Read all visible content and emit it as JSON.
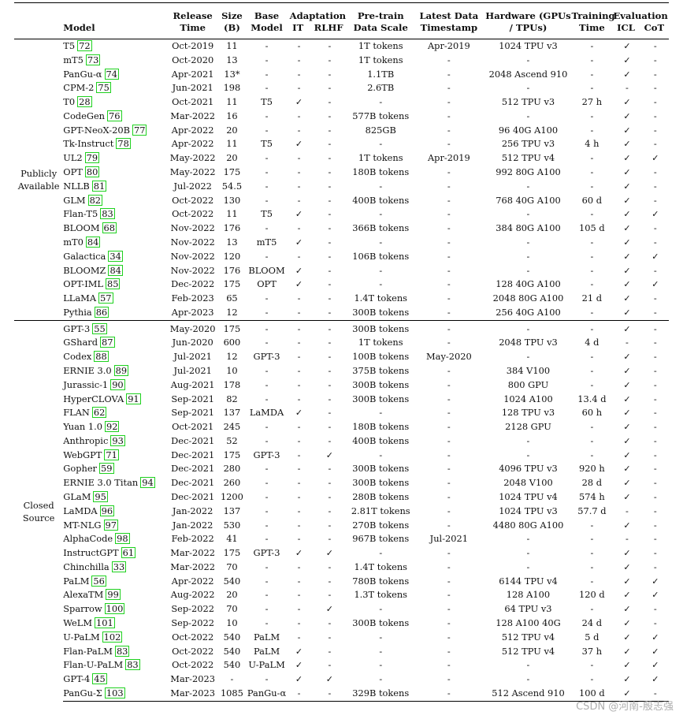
{
  "header": {
    "model": "Model",
    "release": "Release Time",
    "size": "Size (B)",
    "base": "Base Model",
    "adaptation": "Adaptation",
    "it": "IT",
    "rlhf": "RLHF",
    "pretrain": "Pre-train Data Scale",
    "latest": "Latest Data Timestamp",
    "hardware": "Hardware (GPUs / TPUs)",
    "training": "Training Time",
    "evaluation": "Evaluation",
    "icl": "ICL",
    "cot": "CoT"
  },
  "groups": {
    "public": "Publicly Available",
    "closed": "Closed Source"
  },
  "public_rows": [
    [
      "T5",
      "72",
      "Oct-2019",
      "11",
      "-",
      "-",
      "-",
      "1T tokens",
      "Apr-2019",
      "1024 TPU v3",
      "-",
      "✓",
      "-"
    ],
    [
      "mT5",
      "73",
      "Oct-2020",
      "13",
      "-",
      "-",
      "-",
      "1T tokens",
      "-",
      "-",
      "-",
      "✓",
      "-"
    ],
    [
      "PanGu-α",
      "74",
      "Apr-2021",
      "13*",
      "-",
      "-",
      "-",
      "1.1TB",
      "-",
      "2048 Ascend 910",
      "-",
      "✓",
      "-"
    ],
    [
      "CPM-2",
      "75",
      "Jun-2021",
      "198",
      "-",
      "-",
      "-",
      "2.6TB",
      "-",
      "-",
      "-",
      "-",
      "-"
    ],
    [
      "T0",
      "28",
      "Oct-2021",
      "11",
      "T5",
      "✓",
      "-",
      "-",
      "-",
      "512 TPU v3",
      "27 h",
      "✓",
      "-"
    ],
    [
      "CodeGen",
      "76",
      "Mar-2022",
      "16",
      "-",
      "-",
      "-",
      "577B tokens",
      "-",
      "-",
      "-",
      "✓",
      "-"
    ],
    [
      "GPT-NeoX-20B",
      "77",
      "Apr-2022",
      "20",
      "-",
      "-",
      "-",
      "825GB",
      "-",
      "96 40G A100",
      "-",
      "✓",
      "-"
    ],
    [
      "Tk-Instruct",
      "78",
      "Apr-2022",
      "11",
      "T5",
      "✓",
      "-",
      "-",
      "-",
      "256 TPU v3",
      "4 h",
      "✓",
      "-"
    ],
    [
      "UL2",
      "79",
      "May-2022",
      "20",
      "-",
      "-",
      "-",
      "1T tokens",
      "Apr-2019",
      "512 TPU v4",
      "-",
      "✓",
      "✓"
    ],
    [
      "OPT",
      "80",
      "May-2022",
      "175",
      "-",
      "-",
      "-",
      "180B tokens",
      "-",
      "992 80G A100",
      "-",
      "✓",
      "-"
    ],
    [
      "NLLB",
      "81",
      "Jul-2022",
      "54.5",
      "-",
      "-",
      "-",
      "-",
      "-",
      "-",
      "-",
      "✓",
      "-"
    ],
    [
      "GLM",
      "82",
      "Oct-2022",
      "130",
      "-",
      "-",
      "-",
      "400B tokens",
      "-",
      "768 40G A100",
      "60 d",
      "✓",
      "-"
    ],
    [
      "Flan-T5",
      "83",
      "Oct-2022",
      "11",
      "T5",
      "✓",
      "-",
      "-",
      "-",
      "-",
      "-",
      "✓",
      "✓"
    ],
    [
      "BLOOM",
      "68",
      "Nov-2022",
      "176",
      "-",
      "-",
      "-",
      "366B tokens",
      "-",
      "384 80G A100",
      "105 d",
      "✓",
      "-"
    ],
    [
      "mT0",
      "84",
      "Nov-2022",
      "13",
      "mT5",
      "✓",
      "-",
      "-",
      "-",
      "-",
      "-",
      "✓",
      "-"
    ],
    [
      "Galactica",
      "34",
      "Nov-2022",
      "120",
      "-",
      "-",
      "-",
      "106B tokens",
      "-",
      "-",
      "-",
      "✓",
      "✓"
    ],
    [
      "BLOOMZ",
      "84",
      "Nov-2022",
      "176",
      "BLOOM",
      "✓",
      "-",
      "-",
      "-",
      "-",
      "-",
      "✓",
      "-"
    ],
    [
      "OPT-IML",
      "85",
      "Dec-2022",
      "175",
      "OPT",
      "✓",
      "-",
      "-",
      "-",
      "128 40G A100",
      "-",
      "✓",
      "✓"
    ],
    [
      "LLaMA",
      "57",
      "Feb-2023",
      "65",
      "-",
      "-",
      "-",
      "1.4T tokens",
      "-",
      "2048 80G A100",
      "21 d",
      "✓",
      "-"
    ],
    [
      "Pythia",
      "86",
      "Apr-2023",
      "12",
      "-",
      "-",
      "-",
      "300B tokens",
      "-",
      "256 40G A100",
      "-",
      "✓",
      "-"
    ]
  ],
  "closed_rows": [
    [
      "GPT-3",
      "55",
      "May-2020",
      "175",
      "-",
      "-",
      "-",
      "300B tokens",
      "-",
      "-",
      "-",
      "✓",
      "-"
    ],
    [
      "GShard",
      "87",
      "Jun-2020",
      "600",
      "-",
      "-",
      "-",
      "1T tokens",
      "-",
      "2048 TPU v3",
      "4 d",
      "-",
      "-"
    ],
    [
      "Codex",
      "88",
      "Jul-2021",
      "12",
      "GPT-3",
      "-",
      "-",
      "100B tokens",
      "May-2020",
      "-",
      "-",
      "✓",
      "-"
    ],
    [
      "ERNIE 3.0",
      "89",
      "Jul-2021",
      "10",
      "-",
      "-",
      "-",
      "375B tokens",
      "-",
      "384 V100",
      "-",
      "✓",
      "-"
    ],
    [
      "Jurassic-1",
      "90",
      "Aug-2021",
      "178",
      "-",
      "-",
      "-",
      "300B tokens",
      "-",
      "800 GPU",
      "-",
      "✓",
      "-"
    ],
    [
      "HyperCLOVA",
      "91",
      "Sep-2021",
      "82",
      "-",
      "-",
      "-",
      "300B tokens",
      "-",
      "1024 A100",
      "13.4 d",
      "✓",
      "-"
    ],
    [
      "FLAN",
      "62",
      "Sep-2021",
      "137",
      "LaMDA",
      "✓",
      "-",
      "-",
      "-",
      "128 TPU v3",
      "60 h",
      "✓",
      "-"
    ],
    [
      "Yuan 1.0",
      "92",
      "Oct-2021",
      "245",
      "-",
      "-",
      "-",
      "180B tokens",
      "-",
      "2128 GPU",
      "-",
      "✓",
      "-"
    ],
    [
      "Anthropic",
      "93",
      "Dec-2021",
      "52",
      "-",
      "-",
      "-",
      "400B tokens",
      "-",
      "-",
      "-",
      "✓",
      "-"
    ],
    [
      "WebGPT",
      "71",
      "Dec-2021",
      "175",
      "GPT-3",
      "-",
      "✓",
      "-",
      "-",
      "-",
      "-",
      "✓",
      "-"
    ],
    [
      "Gopher",
      "59",
      "Dec-2021",
      "280",
      "-",
      "-",
      "-",
      "300B tokens",
      "-",
      "4096 TPU v3",
      "920 h",
      "✓",
      "-"
    ],
    [
      "ERNIE 3.0 Titan",
      "94",
      "Dec-2021",
      "260",
      "-",
      "-",
      "-",
      "300B tokens",
      "-",
      "2048 V100",
      "28 d",
      "✓",
      "-"
    ],
    [
      "GLaM",
      "95",
      "Dec-2021",
      "1200",
      "-",
      "-",
      "-",
      "280B tokens",
      "-",
      "1024 TPU v4",
      "574 h",
      "✓",
      "-"
    ],
    [
      "LaMDA",
      "96",
      "Jan-2022",
      "137",
      "-",
      "-",
      "-",
      "2.81T tokens",
      "-",
      "1024 TPU v3",
      "57.7 d",
      "-",
      "-"
    ],
    [
      "MT-NLG",
      "97",
      "Jan-2022",
      "530",
      "-",
      "-",
      "-",
      "270B tokens",
      "-",
      "4480 80G A100",
      "-",
      "✓",
      "-"
    ],
    [
      "AlphaCode",
      "98",
      "Feb-2022",
      "41",
      "-",
      "-",
      "-",
      "967B tokens",
      "Jul-2021",
      "-",
      "-",
      "-",
      "-"
    ],
    [
      "InstructGPT",
      "61",
      "Mar-2022",
      "175",
      "GPT-3",
      "✓",
      "✓",
      "-",
      "-",
      "-",
      "-",
      "✓",
      "-"
    ],
    [
      "Chinchilla",
      "33",
      "Mar-2022",
      "70",
      "-",
      "-",
      "-",
      "1.4T tokens",
      "-",
      "-",
      "-",
      "✓",
      "-"
    ],
    [
      "PaLM",
      "56",
      "Apr-2022",
      "540",
      "-",
      "-",
      "-",
      "780B tokens",
      "-",
      "6144 TPU v4",
      "-",
      "✓",
      "✓"
    ],
    [
      "AlexaTM",
      "99",
      "Aug-2022",
      "20",
      "-",
      "-",
      "-",
      "1.3T tokens",
      "-",
      "128 A100",
      "120 d",
      "✓",
      "✓"
    ],
    [
      "Sparrow",
      "100",
      "Sep-2022",
      "70",
      "-",
      "-",
      "✓",
      "-",
      "-",
      "64 TPU v3",
      "-",
      "✓",
      "-"
    ],
    [
      "WeLM",
      "101",
      "Sep-2022",
      "10",
      "-",
      "-",
      "-",
      "300B tokens",
      "-",
      "128 A100 40G",
      "24 d",
      "✓",
      "-"
    ],
    [
      "U-PaLM",
      "102",
      "Oct-2022",
      "540",
      "PaLM",
      "-",
      "-",
      "-",
      "-",
      "512 TPU v4",
      "5 d",
      "✓",
      "✓"
    ],
    [
      "Flan-PaLM",
      "83",
      "Oct-2022",
      "540",
      "PaLM",
      "✓",
      "-",
      "-",
      "-",
      "512 TPU v4",
      "37 h",
      "✓",
      "✓"
    ],
    [
      "Flan-U-PaLM",
      "83",
      "Oct-2022",
      "540",
      "U-PaLM",
      "✓",
      "-",
      "-",
      "-",
      "-",
      "-",
      "✓",
      "✓"
    ],
    [
      "GPT-4",
      "45",
      "Mar-2023",
      "-",
      "-",
      "✓",
      "✓",
      "-",
      "-",
      "-",
      "-",
      "✓",
      "✓"
    ],
    [
      "PanGu-Σ",
      "103",
      "Mar-2023",
      "1085",
      "PanGu-α",
      "-",
      "-",
      "329B tokens",
      "-",
      "512 Ascend 910",
      "100 d",
      "✓",
      "-"
    ]
  ],
  "watermark": "CSDN @河南-殷志强"
}
